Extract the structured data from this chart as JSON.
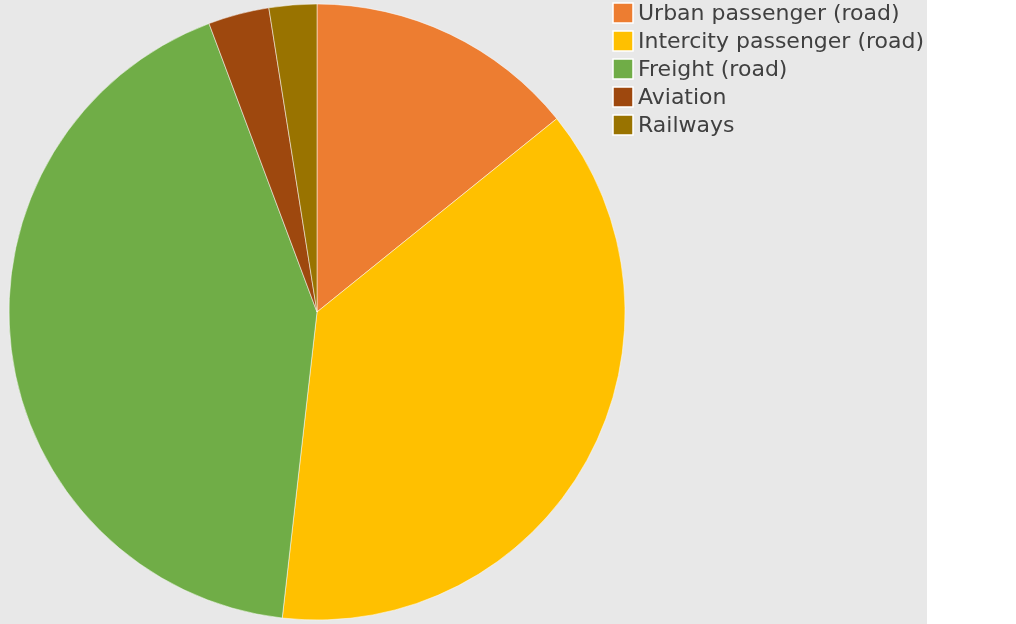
{
  "chart_data": {
    "type": "pie",
    "categories": [
      "Urban passenger (road)",
      "Intercity passenger (road)",
      "Freight (road)",
      "Aviation",
      "Railways"
    ],
    "values": [
      14.2,
      37.6,
      42.5,
      3.2,
      2.5
    ],
    "colors": [
      "#ed7d31",
      "#ffc000",
      "#70ad47",
      "#9e480e",
      "#997300"
    ],
    "legend": "top right"
  }
}
